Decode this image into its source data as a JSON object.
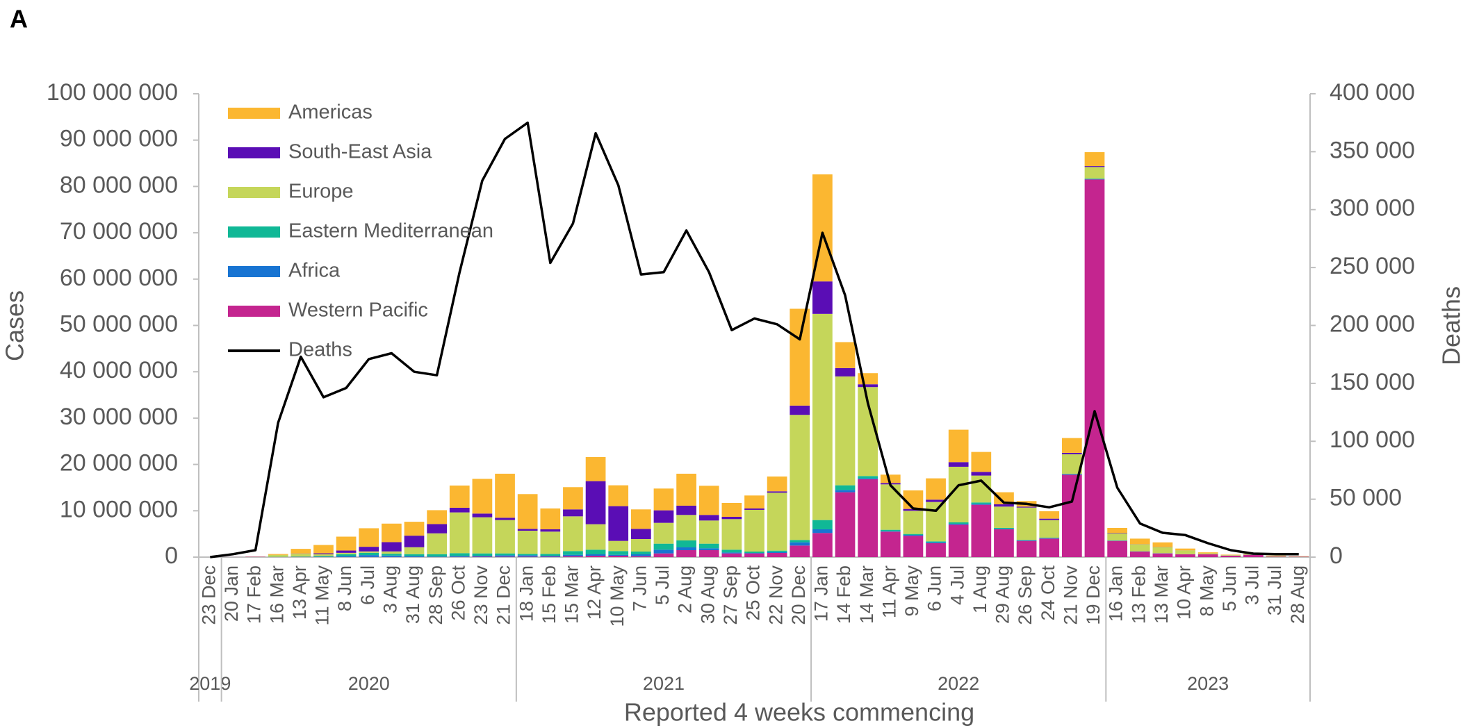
{
  "panel_label": "A",
  "chart_data": {
    "type": "bar",
    "stacked": true,
    "x_label": "Reported 4 weeks commencing",
    "y_label": "Cases",
    "y2_label": "Deaths",
    "legend": "upper left",
    "categories": [
      "23 Dec",
      "20 Jan",
      "17 Feb",
      "16 Mar",
      "13 Apr",
      "11 May",
      "8 Jun",
      "6 Jul",
      "3 Aug",
      "31 Aug",
      "28 Sep",
      "26 Oct",
      "23 Nov",
      "21 Dec",
      "18 Jan",
      "15 Feb",
      "15 Mar",
      "12 Apr",
      "10 May",
      "7 Jun",
      "5 Jul",
      "2 Aug",
      "30 Aug",
      "27 Sep",
      "25 Oct",
      "22 Nov",
      "20 Dec",
      "17 Jan",
      "14 Feb",
      "14 Mar",
      "11 Apr",
      "9 May",
      "6 Jun",
      "4 Jul",
      "1 Aug",
      "29 Aug",
      "26 Sep",
      "24 Oct",
      "21 Nov",
      "19 Dec",
      "16 Jan",
      "13 Feb",
      "13 Mar",
      "10 Apr",
      "8 May",
      "5 Jun",
      "3 Jul",
      "31 Jul",
      "28 Aug"
    ],
    "category_groups": [
      {
        "label": "2019",
        "size": 1
      },
      {
        "label": "2020",
        "size": 13
      },
      {
        "label": "2021",
        "size": 13
      },
      {
        "label": "2022",
        "size": 13
      },
      {
        "label": "2023",
        "size": 9
      }
    ],
    "ylim": [
      0,
      100000000
    ],
    "yticks": [
      0,
      {
        "value": 10000000,
        "label": "10 000 000"
      },
      {
        "value": 20000000,
        "label": "20 000 000"
      },
      {
        "value": 30000000,
        "label": "30 000 000"
      },
      {
        "value": 40000000,
        "label": "40 000 000"
      },
      {
        "value": 50000000,
        "label": "50 000 000"
      },
      {
        "value": 60000000,
        "label": "60 000 000"
      },
      {
        "value": 70000000,
        "label": "70 000 000"
      },
      {
        "value": 80000000,
        "label": "80 000 000"
      },
      {
        "value": 90000000,
        "label": "90 000 000"
      },
      {
        "value": 100000000,
        "label": "100 000 000"
      }
    ],
    "y2lim": [
      0,
      400000
    ],
    "y2ticks": [
      0,
      {
        "value": 50000,
        "label": "50 000"
      },
      {
        "value": 100000,
        "label": "100 000"
      },
      {
        "value": 150000,
        "label": "150 000"
      },
      {
        "value": 200000,
        "label": "200 000"
      },
      {
        "value": 250000,
        "label": "250 000"
      },
      {
        "value": 300000,
        "label": "300 000"
      },
      {
        "value": 350000,
        "label": "350 000"
      },
      {
        "value": 400000,
        "label": "400 000"
      }
    ],
    "series": [
      {
        "name": "Americas",
        "color": "#fbb731",
        "values": [
          0,
          0,
          10000,
          200000,
          1000000,
          1800000,
          3000000,
          4000000,
          4000000,
          3000000,
          3000000,
          4800000,
          7500000,
          9500000,
          7500000,
          4500000,
          4800000,
          5200000,
          4500000,
          4200000,
          4700000,
          6900000,
          6300000,
          3000000,
          2800000,
          3200000,
          20900000,
          23100000,
          5600000,
          2400000,
          1800000,
          4000000,
          4600000,
          7000000,
          4300000,
          2600000,
          1200000,
          1600000,
          3200000,
          3000000,
          1100000,
          1200000,
          1000000,
          400000,
          200000,
          100000,
          100000,
          100000,
          50000
        ]
      },
      {
        "name": "South-East Asia",
        "color": "#5a0db5",
        "values": [
          0,
          0,
          0,
          10000,
          50000,
          200000,
          500000,
          1000000,
          2000000,
          2500000,
          2000000,
          1000000,
          800000,
          500000,
          400000,
          500000,
          1500000,
          9300000,
          7500000,
          2200000,
          2700000,
          2000000,
          1200000,
          500000,
          300000,
          300000,
          2000000,
          7000000,
          1800000,
          600000,
          300000,
          400000,
          500000,
          1000000,
          800000,
          500000,
          200000,
          300000,
          300000,
          200000,
          100000,
          30000,
          30000,
          20000,
          10000,
          10000,
          10000,
          10000,
          10000
        ]
      },
      {
        "name": "Europe",
        "color": "#c5d65a",
        "values": [
          0,
          0,
          20000,
          400000,
          600000,
          400000,
          300000,
          300000,
          500000,
          1500000,
          4500000,
          8800000,
          7800000,
          7200000,
          5000000,
          4800000,
          7500000,
          5500000,
          2200000,
          2700000,
          4500000,
          5500000,
          5000000,
          6600000,
          9000000,
          12500000,
          27000000,
          44500000,
          23500000,
          19200000,
          9800000,
          5000000,
          8500000,
          12000000,
          5800000,
          4600000,
          7000000,
          3800000,
          4200000,
          2500000,
          1500000,
          1500000,
          1300000,
          800000,
          200000,
          100000,
          100000,
          100000,
          50000
        ]
      },
      {
        "name": "Eastern Mediterranean",
        "color": "#10b896",
        "values": [
          0,
          0,
          1000,
          40000,
          80000,
          150000,
          400000,
          500000,
          400000,
          400000,
          500000,
          600000,
          500000,
          400000,
          300000,
          400000,
          800000,
          1000000,
          800000,
          600000,
          1300000,
          1500000,
          1000000,
          600000,
          300000,
          300000,
          500000,
          2000000,
          1000000,
          500000,
          300000,
          200000,
          200000,
          300000,
          300000,
          200000,
          100000,
          100000,
          100000,
          100000,
          50000,
          30000,
          30000,
          20000,
          10000,
          10000,
          10000,
          10000,
          10000
        ]
      },
      {
        "name": "Africa",
        "color": "#1874d2",
        "values": [
          0,
          0,
          0,
          5000,
          20000,
          50000,
          200000,
          400000,
          300000,
          200000,
          100000,
          200000,
          200000,
          300000,
          300000,
          200000,
          300000,
          300000,
          200000,
          400000,
          800000,
          600000,
          400000,
          200000,
          100000,
          200000,
          700000,
          800000,
          500000,
          200000,
          100000,
          200000,
          200000,
          200000,
          200000,
          100000,
          100000,
          100000,
          100000,
          100000,
          50000,
          30000,
          20000,
          10000,
          10000,
          10000,
          10000,
          10000,
          10000
        ]
      },
      {
        "name": "Western Pacific",
        "color": "#c4258f",
        "values": [
          0,
          10000,
          70000,
          20000,
          30000,
          20000,
          20000,
          30000,
          30000,
          30000,
          30000,
          50000,
          100000,
          100000,
          100000,
          100000,
          200000,
          300000,
          300000,
          200000,
          800000,
          1500000,
          1500000,
          800000,
          800000,
          900000,
          2500000,
          5200000,
          14000000,
          16800000,
          5500000,
          4600000,
          3000000,
          7000000,
          11300000,
          6000000,
          3500000,
          4000000,
          17800000,
          81500000,
          3500000,
          1200000,
          800000,
          600000,
          600000,
          300000,
          500000,
          100000,
          80000
        ]
      },
      {
        "name": "Deaths",
        "color": "#000000",
        "type": "line",
        "axis": "y2",
        "values": [
          0,
          2500,
          6000,
          116000,
          173000,
          138000,
          146000,
          171000,
          176000,
          160000,
          157000,
          246000,
          325000,
          361000,
          375000,
          254000,
          288000,
          366000,
          321000,
          244000,
          246000,
          282000,
          246000,
          196000,
          206000,
          201000,
          188000,
          280000,
          226000,
          133000,
          62000,
          42000,
          40000,
          62000,
          66000,
          47000,
          46000,
          43000,
          48000,
          126000,
          60000,
          29000,
          21000,
          19000,
          12000,
          6000,
          3000,
          2500,
          2500
        ]
      }
    ]
  }
}
